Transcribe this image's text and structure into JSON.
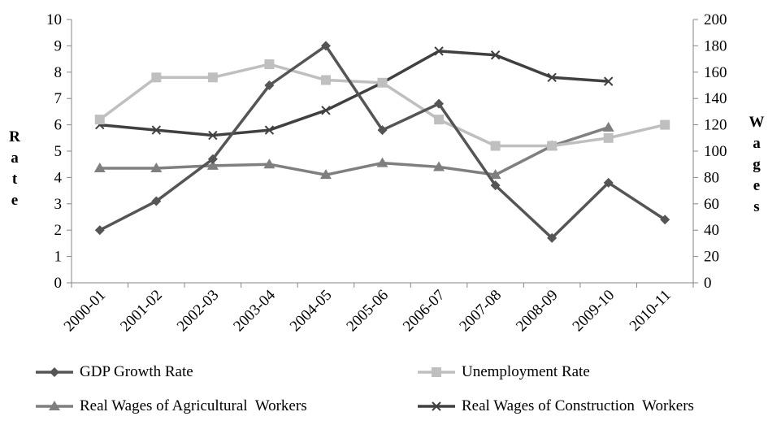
{
  "chart_data": {
    "type": "line",
    "categories": [
      "2000-01",
      "2001-02",
      "2002-03",
      "2003-04",
      "2004-05",
      "2005-06",
      "2006-07",
      "2007-08",
      "2008-09",
      "2009-10",
      "2010-11"
    ],
    "ylabel": "Rate",
    "y2label": "Wages",
    "ylim": [
      0,
      10
    ],
    "y2lim": [
      0,
      200
    ],
    "yticks": [
      "0",
      "1",
      "2",
      "3",
      "4",
      "5",
      "6",
      "7",
      "8",
      "9",
      "10"
    ],
    "y2ticks": [
      "0",
      "20",
      "40",
      "60",
      "80",
      "100",
      "120",
      "140",
      "160",
      "180",
      "200"
    ],
    "grid": false,
    "legend_position": "bottom",
    "series": [
      {
        "name": "GDP Growth Rate",
        "axis": "left",
        "marker": "diamond",
        "color": "#555555",
        "values": [
          2.0,
          3.1,
          4.7,
          7.5,
          9.0,
          5.8,
          6.8,
          3.7,
          1.7,
          3.8,
          2.4
        ]
      },
      {
        "name": "Unemployment Rate",
        "axis": "left",
        "marker": "square",
        "color": "#bfbfbf",
        "values": [
          6.2,
          7.8,
          7.8,
          8.3,
          7.7,
          7.6,
          6.2,
          5.2,
          5.2,
          5.5,
          6.0
        ]
      },
      {
        "name": "Real Wages of Agricultural  Workers",
        "axis": "left",
        "marker": "triangle",
        "color": "#7f7f7f",
        "values": [
          4.35,
          4.35,
          4.45,
          4.5,
          4.1,
          4.55,
          4.4,
          4.1,
          5.2,
          5.9,
          null
        ]
      },
      {
        "name": "Real Wages of Construction  Workers",
        "axis": "left",
        "marker": "x",
        "color": "#404040",
        "values": [
          6.0,
          5.8,
          5.6,
          5.8,
          6.55,
          7.6,
          8.8,
          8.65,
          7.8,
          7.65,
          null
        ]
      }
    ]
  }
}
